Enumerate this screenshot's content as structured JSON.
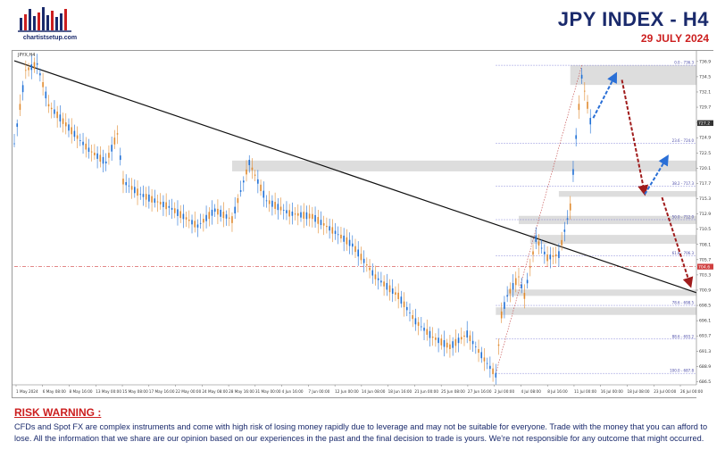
{
  "header": {
    "logo_text": "chartistsetup.com",
    "title": "JPY INDEX  -  H4",
    "date": "29 JULY 2024"
  },
  "chart_data": {
    "type": "candlestick",
    "symbol_label": "JPYX,H4",
    "ylim": [
      686,
      738
    ],
    "y_ticks": [
      "686.5",
      "688.9",
      "691.3",
      "693.7",
      "696.1",
      "698.5",
      "700.9",
      "703.3",
      "705.7",
      "708.1",
      "710.5",
      "712.9",
      "715.3",
      "717.7",
      "720.1",
      "722.5",
      "724.9",
      "727.3",
      "729.7",
      "732.1",
      "734.5",
      "736.9"
    ],
    "x_ticks": [
      "1 May 2024",
      "6 May 08:00",
      "8 May 16:00",
      "13 May 00:00",
      "15 May 08:00",
      "17 May 16:00",
      "22 May 00:00",
      "24 May 08:00",
      "28 May 16:00",
      "31 May 00:00",
      "4 Jun 16:00",
      "7 Jun 00:00",
      "12 Jun 00:00",
      "14 Jun 08:00",
      "18 Jun 16:00",
      "21 Jun 00:00",
      "25 Jun 08:00",
      "27 Jun 16:00",
      "2 Jul 00:00",
      "4 Jul 08:00",
      "8 Jul 16:00",
      "11 Jul 00:00",
      "16 Jul 00:00",
      "18 Jul 08:00",
      "23 Jul 00:00",
      "26 Jul 00:00"
    ],
    "price_path": [
      {
        "x": 0,
        "y": 724
      },
      {
        "x": 2,
        "y": 735.5
      },
      {
        "x": 4,
        "y": 736.5
      },
      {
        "x": 6,
        "y": 730
      },
      {
        "x": 9,
        "y": 727
      },
      {
        "x": 13,
        "y": 723
      },
      {
        "x": 16,
        "y": 721
      },
      {
        "x": 18,
        "y": 725.5
      },
      {
        "x": 19,
        "y": 718
      },
      {
        "x": 22,
        "y": 716
      },
      {
        "x": 27,
        "y": 714
      },
      {
        "x": 32,
        "y": 711
      },
      {
        "x": 35,
        "y": 713.5
      },
      {
        "x": 38,
        "y": 712
      },
      {
        "x": 41,
        "y": 721
      },
      {
        "x": 44,
        "y": 715
      },
      {
        "x": 48,
        "y": 713
      },
      {
        "x": 52,
        "y": 712.5
      },
      {
        "x": 56,
        "y": 710
      },
      {
        "x": 59,
        "y": 708
      },
      {
        "x": 63,
        "y": 703
      },
      {
        "x": 67,
        "y": 700
      },
      {
        "x": 70,
        "y": 696
      },
      {
        "x": 73,
        "y": 693.5
      },
      {
        "x": 76,
        "y": 692
      },
      {
        "x": 79,
        "y": 694
      },
      {
        "x": 82,
        "y": 690
      },
      {
        "x": 84,
        "y": 687.5
      },
      {
        "x": 85,
        "y": 697
      },
      {
        "x": 86,
        "y": 700
      },
      {
        "x": 88,
        "y": 703
      },
      {
        "x": 89,
        "y": 700
      },
      {
        "x": 91,
        "y": 709
      },
      {
        "x": 93,
        "y": 706
      },
      {
        "x": 95,
        "y": 706.5
      },
      {
        "x": 97,
        "y": 714
      },
      {
        "x": 98,
        "y": 725
      },
      {
        "x": 99,
        "y": 734.5
      },
      {
        "x": 100,
        "y": 730
      },
      {
        "x": 101,
        "y": 725
      }
    ],
    "current_price": "723.0",
    "current_price_marker": "727.2",
    "reference_line": {
      "label": "704.6",
      "y": 704.6
    },
    "trendline": {
      "from": [
        0,
        737
      ],
      "to": [
        119,
        700.5
      ]
    },
    "fib_levels": [
      {
        "label": "0.0 - 736.3",
        "y": 736.3
      },
      {
        "label": "23.6 - 724.0",
        "y": 724.0
      },
      {
        "label": "38.2 - 717.3",
        "y": 717.3
      },
      {
        "label": "50.0 - 712.0",
        "y": 712.0
      },
      {
        "label": "61.8 - 706.3",
        "y": 706.3
      },
      {
        "label": "78.6 - 698.5",
        "y": 698.5
      },
      {
        "label": "88.6 - 693.2",
        "y": 693.2
      },
      {
        "label": "100.0 - 687.8",
        "y": 687.8
      }
    ],
    "zones": [
      {
        "y_top": 736.3,
        "y_bottom": 733.2,
        "x_start": 97
      },
      {
        "y_top": 721.3,
        "y_bottom": 719.6,
        "x_start": 38
      },
      {
        "y_top": 716.5,
        "y_bottom": 715.6,
        "x_start": 95
      },
      {
        "y_top": 712.6,
        "y_bottom": 711.3,
        "x_start": 88
      },
      {
        "y_top": 709.6,
        "y_bottom": 708.2,
        "x_start": 90
      },
      {
        "y_top": 701.0,
        "y_bottom": 700.0,
        "x_start": 86
      },
      {
        "y_top": 698.2,
        "y_bottom": 697.0,
        "x_start": 84
      }
    ],
    "arrows": [
      {
        "color": "blue",
        "from": [
          101,
          728
        ],
        "to": [
          105,
          735
        ]
      },
      {
        "color": "red",
        "from": [
          106,
          734
        ],
        "to": [
          110,
          716
        ]
      },
      {
        "color": "blue",
        "from": [
          110,
          716
        ],
        "to": [
          114,
          722
        ]
      },
      {
        "color": "red",
        "from": [
          113,
          715.5
        ],
        "to": [
          118,
          701.5
        ]
      }
    ]
  },
  "risk": {
    "title": "RISK WARNING :",
    "text": "CFDs and Spot FX are complex instruments and come with high risk of losing money rapidly due to leverage and may not be suitable for everyone. Trade with the money that you can afford to lose. All the information that we share are our opinion based on our experiences in the past and the final decision to trade is yours. We're not responsible for any outcome that might occurred."
  }
}
